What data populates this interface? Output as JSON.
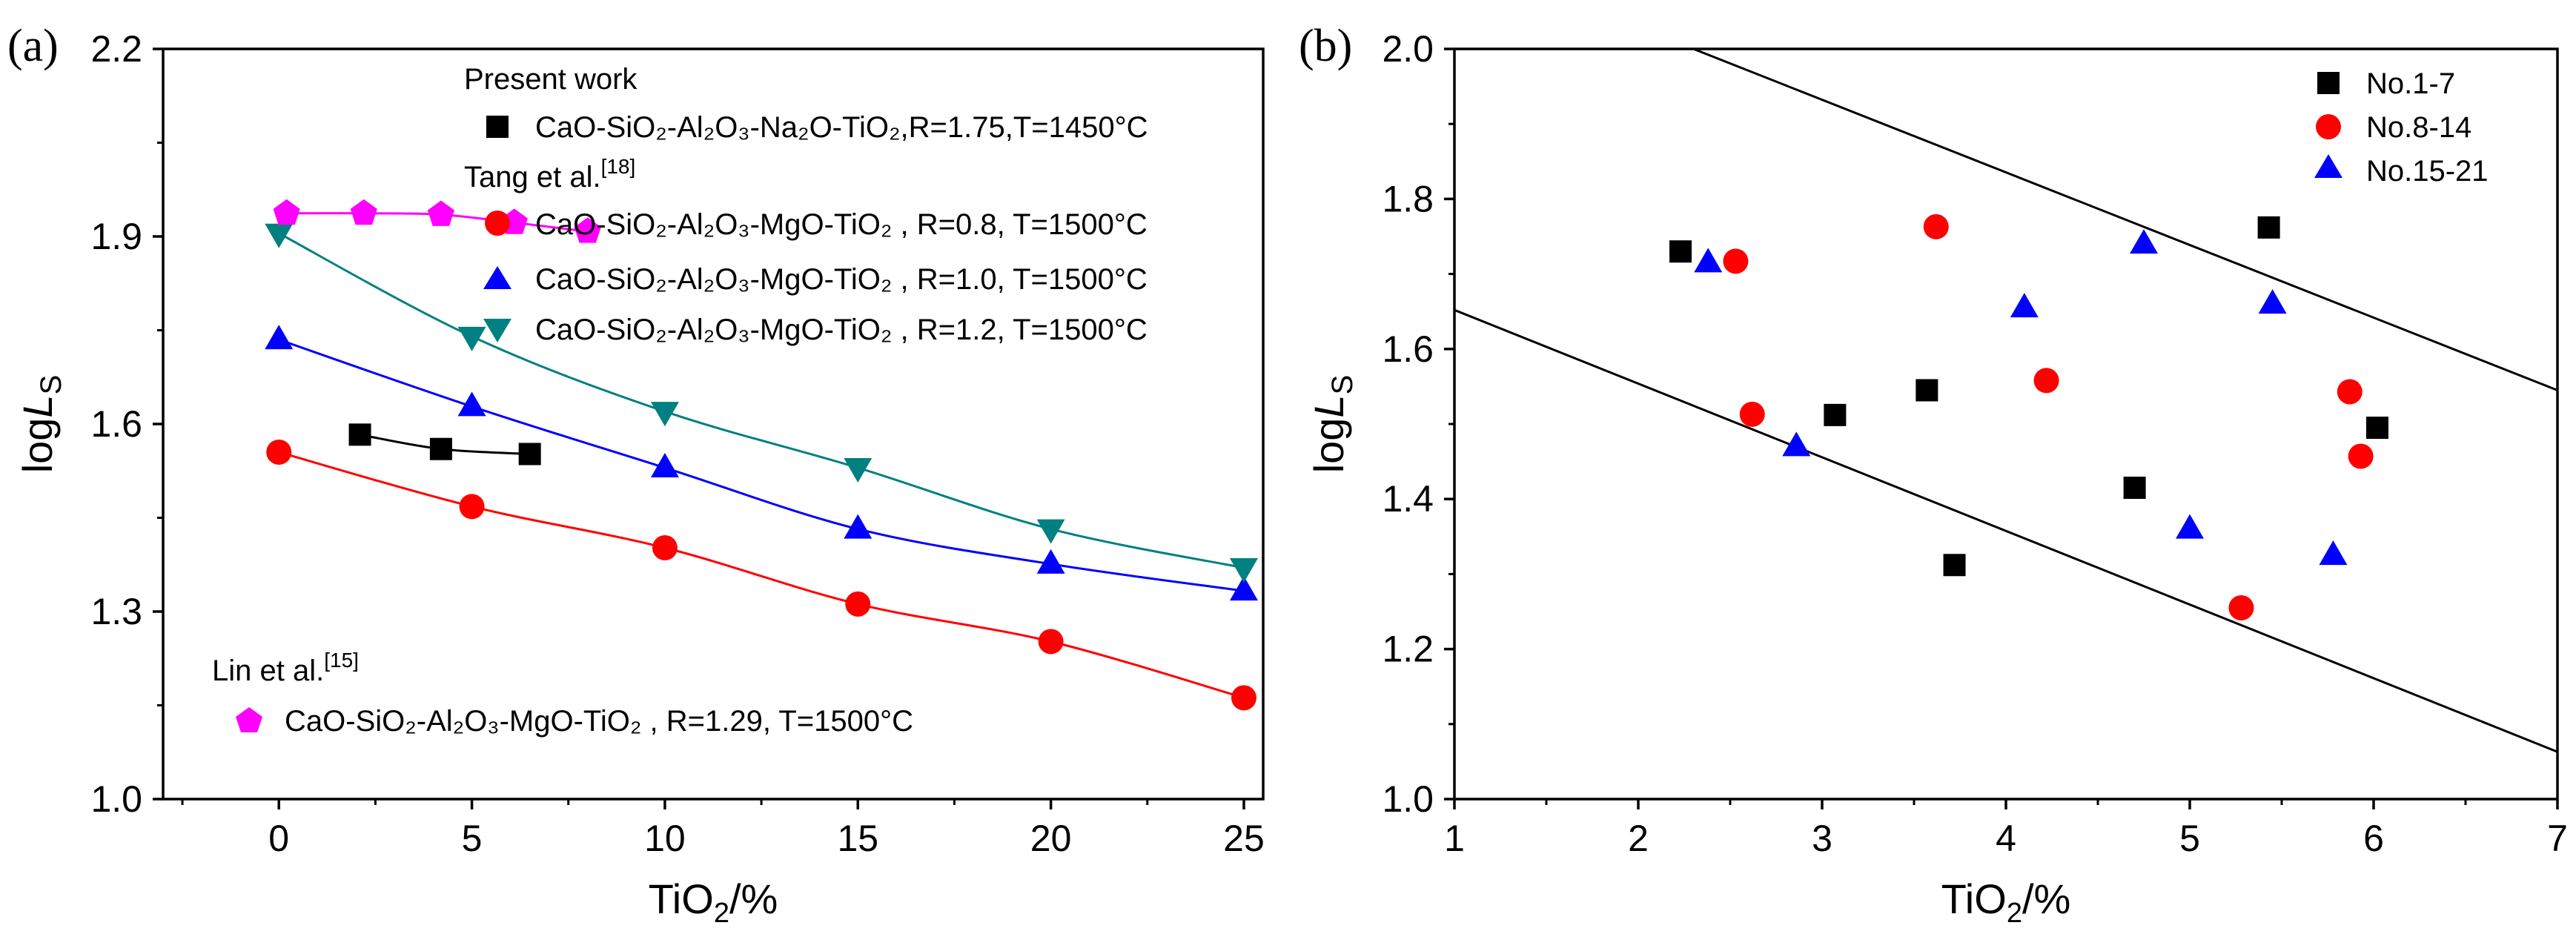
{
  "chart_data": [
    {
      "panel": "(a)",
      "type": "line",
      "xlabel": "TiO2/%",
      "xlabel_main": "TiO",
      "xlabel_sub": "2",
      "xlabel_tail": "/%",
      "ylabel_prefix": "log",
      "ylabel_italic": "L",
      "ylabel_sub": "S",
      "xlim": [
        -3,
        25.5
      ],
      "ylim": [
        1.0,
        2.2
      ],
      "xticks": [
        0,
        5,
        10,
        15,
        20,
        25
      ],
      "xtick_labels": [
        "0",
        "5",
        "10",
        "15",
        "20",
        "25"
      ],
      "yticks": [
        1.0,
        1.3,
        1.6,
        1.9,
        2.2
      ],
      "ytick_labels": [
        "1.0",
        "1.3",
        "1.6",
        "1.9",
        "2.2"
      ],
      "legend_groups": {
        "present": "Present work",
        "tang": "Tang et al.",
        "tang_ref": "[18]",
        "lin": "Lin et al.",
        "lin_ref": "[15]"
      },
      "series": [
        {
          "name": "CaO-SiO2-Al2O3-Na2O-TiO2,R=1.75,T=1450°C",
          "legend_label": "CaO-SiO₂-Al₂O₃-Na₂O-TiO₂,R=1.75,T=1450°C",
          "group": "Present work",
          "marker": "square",
          "color": "#000000",
          "x": [
            2.1,
            4.2,
            6.5
          ],
          "y": [
            1.583,
            1.56,
            1.552
          ]
        },
        {
          "name": "CaO-SiO2-Al2O3-MgO-TiO2, R=0.8, T=1500°C",
          "legend_label": "CaO-SiO₂-Al₂O₃-MgO-TiO₂ , R=0.8, T=1500°C",
          "group": "Tang et al.",
          "marker": "circle",
          "color": "#ff0000",
          "x": [
            0,
            5,
            10,
            15,
            20,
            25
          ],
          "y": [
            1.555,
            1.468,
            1.402,
            1.312,
            1.252,
            1.162
          ]
        },
        {
          "name": "CaO-SiO2-Al2O3-MgO-TiO2, R=1.0, T=1500°C",
          "legend_label": "CaO-SiO₂-Al₂O₃-MgO-TiO₂ , R=1.0, T=1500°C",
          "group": "Tang et al.",
          "marker": "triangle-up",
          "color": "#0000ff",
          "x": [
            0,
            5,
            10,
            15,
            20,
            25
          ],
          "y": [
            1.735,
            1.628,
            1.53,
            1.432,
            1.376,
            1.333
          ]
        },
        {
          "name": "CaO-SiO2-Al2O3-MgO-TiO2, R=1.2, T=1500°C",
          "legend_label": "CaO-SiO₂-Al₂O₃-MgO-TiO₂ , R=1.2, T=1500°C",
          "group": "Tang et al.",
          "marker": "triangle-down",
          "color": "#008080",
          "x": [
            0,
            5,
            10,
            15,
            20,
            25
          ],
          "y": [
            1.905,
            1.74,
            1.62,
            1.53,
            1.432,
            1.37
          ]
        },
        {
          "name": "CaO-SiO2-Al2O3-MgO-TiO2, R=1.29, T=1500°C",
          "legend_label": "CaO-SiO₂-Al₂O₃-MgO-TiO₂ , R=1.29, T=1500°C",
          "group": "Lin et al.",
          "marker": "pentagon",
          "color": "#ff00ff",
          "x": [
            0.2,
            2.2,
            4.2,
            6.1,
            8.0
          ],
          "y": [
            1.937,
            1.937,
            1.935,
            1.922,
            1.908
          ]
        }
      ]
    },
    {
      "panel": "(b)",
      "type": "scatter",
      "xlabel": "TiO2/%",
      "xlabel_main": "TiO",
      "xlabel_sub": "2",
      "xlabel_tail": "/%",
      "ylabel_prefix": "log",
      "ylabel_italic": "L",
      "ylabel_sub": "S",
      "xlim": [
        1,
        7
      ],
      "ylim": [
        1.0,
        2.0
      ],
      "xticks": [
        1,
        2,
        3,
        4,
        5,
        6,
        7
      ],
      "xtick_labels": [
        "1",
        "2",
        "3",
        "4",
        "5",
        "6",
        "7"
      ],
      "yticks": [
        1.0,
        1.2,
        1.4,
        1.6,
        1.8,
        2.0
      ],
      "ytick_labels": [
        "1.0",
        "1.2",
        "1.4",
        "1.6",
        "1.8",
        "2.0"
      ],
      "bound_lines": [
        {
          "name": "upper-bound-line",
          "x": [
            2.3,
            7.0
          ],
          "y": [
            2.0,
            1.545
          ]
        },
        {
          "name": "lower-bound-line",
          "x": [
            1.0,
            7.0
          ],
          "y": [
            1.652,
            1.063
          ]
        }
      ],
      "series": [
        {
          "name": "No.1-7",
          "marker": "square",
          "color": "#000000",
          "x": [
            2.23,
            3.07,
            3.57,
            3.72,
            4.7,
            5.43,
            6.02
          ],
          "y": [
            1.73,
            1.512,
            1.545,
            1.312,
            1.415,
            1.762,
            1.495
          ]
        },
        {
          "name": "No.8-14",
          "marker": "circle",
          "color": "#ff0000",
          "x": [
            2.53,
            2.62,
            3.62,
            4.22,
            5.28,
            5.87,
            5.93
          ],
          "y": [
            1.717,
            1.513,
            1.763,
            1.558,
            1.255,
            1.543,
            1.457
          ]
        },
        {
          "name": "No.15-21",
          "marker": "triangle-up",
          "color": "#0000ff",
          "x": [
            2.38,
            2.86,
            4.1,
            4.75,
            5.0,
            5.45,
            5.78
          ],
          "y": [
            1.715,
            1.47,
            1.655,
            1.74,
            1.36,
            1.66,
            1.325
          ]
        }
      ]
    }
  ]
}
